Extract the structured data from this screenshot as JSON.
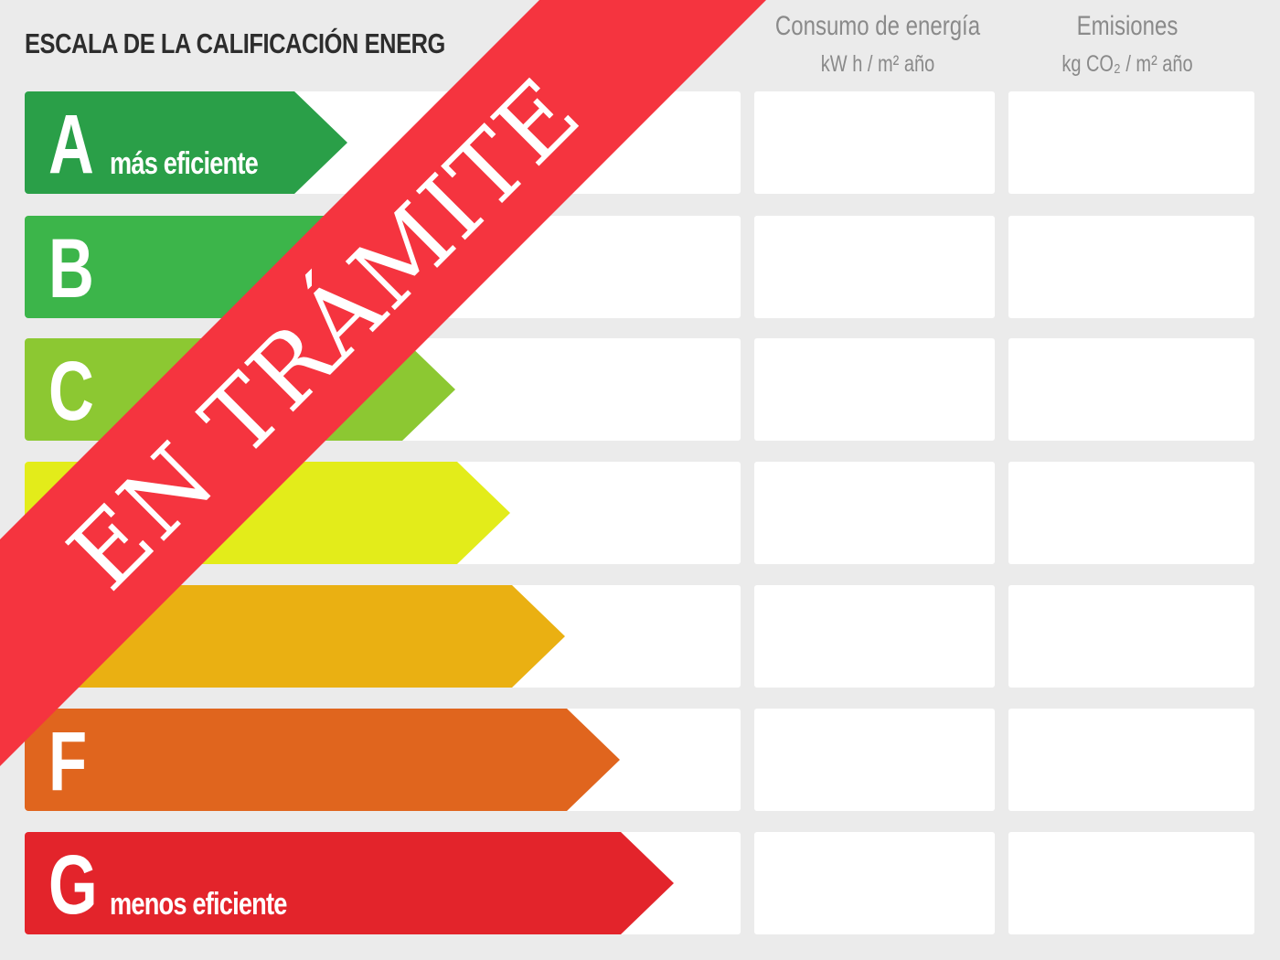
{
  "title": "ESCALA DE LA CALIFICACIÓN ENERGÉTICA",
  "title_visible": "ESCALA DE LA CALIFICACIÓN ENERG",
  "columns": [
    {
      "label": "Consumo de energía",
      "unit": "kW h / m² año"
    },
    {
      "label": "Emisiones",
      "unit": "kg CO₂ / m² año"
    }
  ],
  "ratings": [
    {
      "letter": "A",
      "note": "más eficiente",
      "color": "#2a9f48"
    },
    {
      "letter": "B",
      "note": "",
      "color": "#3cb54a"
    },
    {
      "letter": "C",
      "note": "",
      "color": "#8cc832"
    },
    {
      "letter": "",
      "note": "",
      "color": "#e3ec1a"
    },
    {
      "letter": "",
      "note": "",
      "color": "#eab012"
    },
    {
      "letter": "F",
      "note": "",
      "color": "#e0651e"
    },
    {
      "letter": "G",
      "note": "menos eficiente",
      "color": "#e3242b"
    }
  ],
  "stamp": {
    "text": "EN TRÁMITE",
    "color": "#f5343f"
  }
}
